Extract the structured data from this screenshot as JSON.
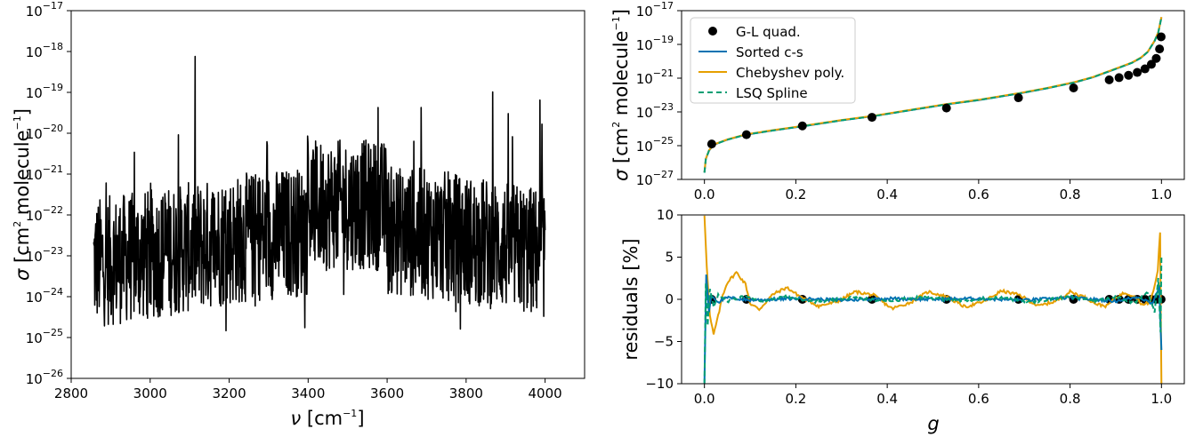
{
  "chart_data": [
    {
      "type": "line",
      "panel": "left",
      "xlabel": {
        "symbol": "ν",
        "unit_open": "[cm",
        "unit_exp": "−1",
        "unit_close": "]"
      },
      "ylabel": {
        "symbol": "σ",
        "pre": "[cm",
        "exp1": "2",
        "mid": " molecule",
        "exp2": "−1",
        "post": "]"
      },
      "xlim": [
        2800,
        4100
      ],
      "ylim_log10": [
        -26,
        -17
      ],
      "yscale": "log",
      "xticks": [
        2800,
        3000,
        3200,
        3400,
        3600,
        3800,
        4000
      ],
      "yticks": [
        {
          "base": "10",
          "exp": "−26"
        },
        {
          "base": "10",
          "exp": "−25"
        },
        {
          "base": "10",
          "exp": "−24"
        },
        {
          "base": "10",
          "exp": "−23"
        },
        {
          "base": "10",
          "exp": "−22"
        },
        {
          "base": "10",
          "exp": "−21"
        },
        {
          "base": "10",
          "exp": "−20"
        },
        {
          "base": "10",
          "exp": "−19"
        },
        {
          "base": "10",
          "exp": "−18"
        },
        {
          "base": "10",
          "exp": "−17"
        }
      ],
      "series": [
        {
          "x_range": [
            2857,
            4000
          ],
          "log10_baseline": -22.8,
          "log10_min": -26.0,
          "log10_max": -18.05,
          "color": "#000000"
        }
      ]
    },
    {
      "type": "line",
      "panel": "top-right",
      "ylabel": {
        "symbol": "σ",
        "pre": "[cm",
        "exp1": "2",
        "mid": " molecule",
        "exp2": "−1",
        "post": "]"
      },
      "xlim": [
        -0.05,
        1.05
      ],
      "ylim_log10": [
        -27,
        -17
      ],
      "yscale": "log",
      "xticks": [
        "0.0",
        "0.2",
        "0.4",
        "0.6",
        "0.8",
        "1.0"
      ],
      "yticks": [
        {
          "base": "10",
          "exp": "−27"
        },
        {
          "base": "10",
          "exp": "−25"
        },
        {
          "base": "10",
          "exp": "−23"
        },
        {
          "base": "10",
          "exp": "−21"
        },
        {
          "base": "10",
          "exp": "−19"
        },
        {
          "base": "10",
          "exp": "−17"
        }
      ],
      "legend_position": "top-left",
      "legend": [
        {
          "label": "G-L quad.",
          "style": "marker",
          "color": "#000000"
        },
        {
          "label": "Sorted c-s",
          "style": "line",
          "color": "#0072b2"
        },
        {
          "label": "Chebyshev poly.",
          "style": "line",
          "color": "#e69f00"
        },
        {
          "label": "LSQ Spline",
          "style": "dashed",
          "color": "#009e73"
        }
      ],
      "curve": {
        "g": [
          0.0,
          0.003,
          0.01,
          0.02,
          0.05,
          0.09,
          0.15,
          0.215,
          0.3,
          0.37,
          0.45,
          0.53,
          0.6,
          0.69,
          0.75,
          0.81,
          0.85,
          0.885,
          0.91,
          0.935,
          0.955,
          0.97,
          0.985,
          0.993,
          1.0
        ],
        "log10_sigma": [
          -26.6,
          -25.8,
          -25.3,
          -24.95,
          -24.65,
          -24.35,
          -24.1,
          -23.85,
          -23.5,
          -23.25,
          -22.9,
          -22.55,
          -22.3,
          -21.9,
          -21.6,
          -21.25,
          -20.95,
          -20.6,
          -20.35,
          -20.1,
          -19.8,
          -19.45,
          -18.8,
          -18.3,
          -17.4
        ]
      },
      "quad_points": {
        "g": [
          0.0159,
          0.0919,
          0.2143,
          0.3666,
          0.5296,
          0.6871,
          0.8077,
          0.8857,
          0.9072,
          0.9279,
          0.947,
          0.9639,
          0.9779,
          0.9886,
          0.9958,
          0.9992
        ],
        "log10_sigma": [
          -24.9,
          -24.35,
          -23.83,
          -23.32,
          -22.77,
          -22.16,
          -21.58,
          -21.1,
          -20.97,
          -20.83,
          -20.66,
          -20.45,
          -20.18,
          -19.83,
          -19.27,
          -18.55
        ]
      }
    },
    {
      "type": "line",
      "panel": "bottom-right",
      "xlabel": "g",
      "ylabel": "residuals [%]",
      "xlim": [
        -0.05,
        1.05
      ],
      "ylim": [
        -10,
        10
      ],
      "xticks": [
        "0.0",
        "0.2",
        "0.4",
        "0.6",
        "0.8",
        "1.0"
      ],
      "yticks": [
        "−10",
        "−5",
        "0",
        "5",
        "10"
      ],
      "quad_points_g": [
        0.0159,
        0.0919,
        0.2143,
        0.3666,
        0.5296,
        0.6871,
        0.8077,
        0.8857,
        0.9072,
        0.9279,
        0.947,
        0.9639,
        0.9779,
        0.9886,
        0.9958,
        0.9992
      ],
      "series": [
        {
          "name": "Chebyshev poly.",
          "color": "#e69f00",
          "g": [
            0.0,
            0.005,
            0.012,
            0.02,
            0.03,
            0.04,
            0.05,
            0.07,
            0.09,
            0.1,
            0.12,
            0.15,
            0.18,
            0.21,
            0.25,
            0.29,
            0.33,
            0.37,
            0.41,
            0.45,
            0.49,
            0.53,
            0.57,
            0.61,
            0.65,
            0.69,
            0.73,
            0.77,
            0.8,
            0.83,
            0.86,
            0.88,
            0.9,
            0.92,
            0.94,
            0.96,
            0.975,
            0.985,
            0.992,
            0.997,
            1.0
          ],
          "residual_pct": [
            10.0,
            4.0,
            -2.0,
            -4.2,
            -2.0,
            0.5,
            2.0,
            3.2,
            1.8,
            -0.5,
            -1.2,
            0.6,
            1.4,
            0.3,
            -0.8,
            -0.3,
            0.9,
            0.5,
            -1.1,
            -0.4,
            0.9,
            0.3,
            -0.9,
            -0.3,
            1.0,
            0.5,
            -0.8,
            -0.2,
            0.9,
            0.3,
            -0.6,
            -0.8,
            0.2,
            0.8,
            0.4,
            -0.7,
            -0.3,
            1.5,
            3.5,
            8.0,
            -10.0
          ]
        },
        {
          "name": "Sorted c-s",
          "color": "#0072b2",
          "g": [
            0.0,
            0.004,
            0.01,
            0.015,
            0.03,
            0.05,
            0.1,
            0.2,
            0.3,
            0.4,
            0.5,
            0.6,
            0.7,
            0.8,
            0.9,
            0.95,
            0.98,
            0.995,
            1.0
          ],
          "residual_pct": [
            -10.0,
            3.0,
            -1.5,
            0.5,
            -0.3,
            0.2,
            -0.1,
            0.1,
            -0.1,
            0.1,
            0.0,
            0.1,
            -0.1,
            0.2,
            -0.2,
            0.3,
            -0.5,
            1.5,
            -6.0
          ]
        },
        {
          "name": "LSQ Spline",
          "color": "#009e73",
          "dashed": true,
          "g": [
            0.0,
            0.003,
            0.007,
            0.012,
            0.02,
            0.03,
            0.05,
            0.08,
            0.12,
            0.18,
            0.25,
            0.32,
            0.4,
            0.48,
            0.56,
            0.64,
            0.72,
            0.8,
            0.86,
            0.9,
            0.94,
            0.97,
            0.985,
            0.993,
            0.998,
            1.0
          ],
          "residual_pct": [
            -10.0,
            2.0,
            -3.0,
            1.2,
            -0.8,
            0.5,
            -0.3,
            0.4,
            -0.2,
            0.3,
            -0.3,
            0.2,
            -0.2,
            0.3,
            -0.2,
            0.2,
            -0.3,
            0.3,
            -0.2,
            0.4,
            -0.5,
            0.8,
            -1.5,
            2.5,
            -4.0,
            5.0
          ]
        }
      ]
    }
  ]
}
